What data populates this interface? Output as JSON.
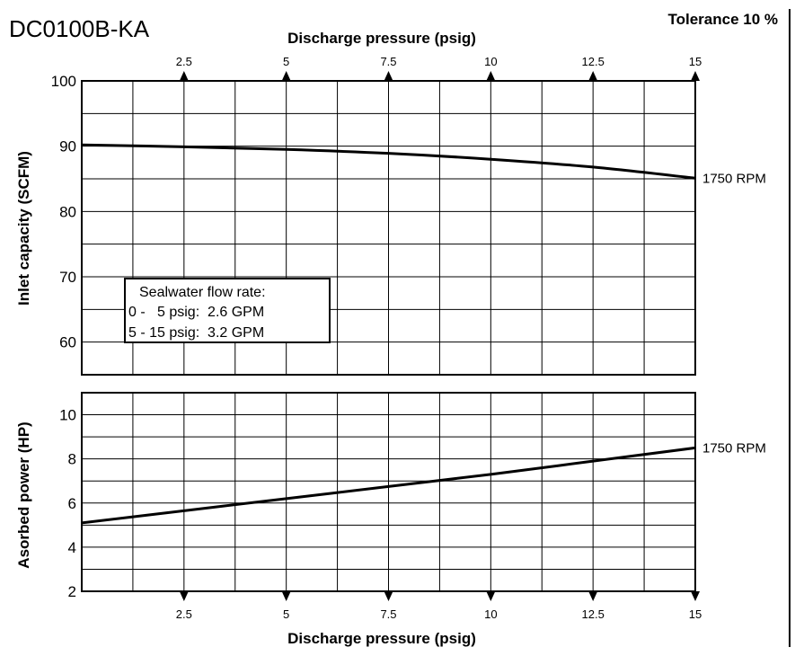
{
  "header": {
    "model": "DC0100B-KA",
    "tolerance": "Tolerance 10 %"
  },
  "note": {
    "lines": [
      "Sealwater flow rate:",
      "0 -   5 psig:  2.6 GPM",
      "5 - 15 psig:  3.2 GPM"
    ]
  },
  "chart_data": [
    {
      "type": "line",
      "title": "",
      "xlabel": "Discharge pressure (psig)",
      "ylabel": "Inlet capacity (SCFM)",
      "xlim": [
        0,
        15
      ],
      "ylim": [
        55,
        100
      ],
      "x_ticks": [
        2.5,
        5,
        7.5,
        10,
        12.5,
        15
      ],
      "x_tick_labels": [
        "2.5",
        "5",
        "7.5",
        "10",
        "12.5",
        "15"
      ],
      "y_ticks": [
        60,
        70,
        80,
        90,
        100
      ],
      "y_tick_labels": [
        "60",
        "70",
        "80",
        "90",
        "100"
      ],
      "grid": true,
      "series": [
        {
          "name": "1750 RPM",
          "x": [
            0,
            2.5,
            5,
            7.5,
            10,
            12.5,
            15
          ],
          "y": [
            90.2,
            89.9,
            89.5,
            88.9,
            88.0,
            86.8,
            85.1
          ]
        }
      ]
    },
    {
      "type": "line",
      "title": "",
      "xlabel": "Discharge pressure (psig)",
      "ylabel": "Asorbed power (HP)",
      "xlim": [
        0,
        15
      ],
      "ylim": [
        2,
        11
      ],
      "x_ticks": [
        2.5,
        5,
        7.5,
        10,
        12.5,
        15
      ],
      "x_tick_labels": [
        "2.5",
        "5",
        "7.5",
        "10",
        "12.5",
        "15"
      ],
      "y_ticks": [
        2,
        4,
        6,
        8,
        10
      ],
      "y_tick_labels": [
        "2",
        "4",
        "6",
        "8",
        "10"
      ],
      "grid": true,
      "series": [
        {
          "name": "1750 RPM",
          "x": [
            0,
            2.5,
            5,
            7.5,
            10,
            12.5,
            15
          ],
          "y": [
            5.1,
            5.65,
            6.2,
            6.75,
            7.3,
            7.9,
            8.5
          ]
        }
      ]
    }
  ]
}
